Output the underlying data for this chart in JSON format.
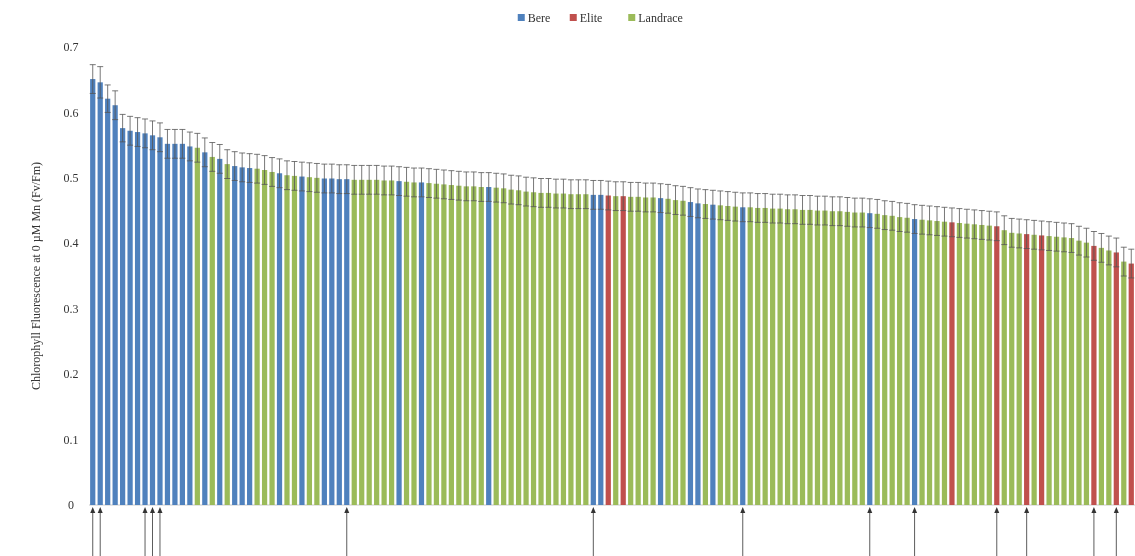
{
  "chart_data": {
    "type": "bar",
    "ylabel": "Chlorophyll Fluorescence at 0 µM Mn (Fv/Fm)",
    "legend": "top",
    "categories": [
      null,
      null,
      null,
      null,
      null,
      null,
      null,
      null,
      null,
      null,
      null,
      null,
      null,
      null,
      null,
      null,
      null,
      null,
      null,
      null,
      null,
      null,
      null,
      null,
      null,
      null,
      null,
      null,
      null,
      null,
      null,
      null,
      null,
      null,
      null,
      null,
      null,
      null,
      null,
      null,
      null,
      null,
      null,
      null,
      null,
      null,
      null,
      null,
      null,
      null,
      null,
      null,
      null,
      null,
      null,
      null,
      null,
      null,
      null,
      null,
      null,
      null,
      null,
      null,
      null,
      null,
      null,
      null,
      null,
      null,
      null,
      null,
      null,
      null,
      null,
      null,
      null,
      null,
      null,
      null,
      null,
      null,
      null,
      null,
      null,
      null,
      null,
      null,
      null,
      null,
      null,
      null,
      null,
      null,
      null,
      null,
      null,
      null,
      null,
      null,
      null,
      null,
      null,
      null,
      null,
      null,
      null,
      null,
      null,
      null,
      null,
      null,
      null,
      null,
      null,
      null,
      null,
      null,
      null,
      null,
      null,
      null,
      null,
      null,
      null,
      null,
      null,
      null,
      null,
      null,
      null,
      null,
      null,
      null,
      null,
      null,
      null,
      null,
      null,
      null
    ],
    "ylim": [
      0,
      0.7
    ],
    "yticks": [
      0,
      0.1,
      0.2,
      0.3,
      0.4,
      0.5,
      0.6,
      0.7
    ],
    "series": [
      {
        "name": "Bere",
        "color": "#4f81bd",
        "values": [
          0.651,
          0.646,
          0.621,
          0.611,
          0.576,
          0.572,
          0.57,
          0.568,
          0.565,
          0.562,
          0.552,
          0.552,
          0.552,
          0.548,
          null,
          0.539,
          null,
          0.529,
          null,
          0.518,
          0.516,
          0.515,
          null,
          null,
          null,
          0.507,
          null,
          null,
          0.502,
          null,
          null,
          0.499,
          0.499,
          0.498,
          0.498,
          null,
          null,
          null,
          null,
          null,
          null,
          0.495,
          null,
          null,
          0.493,
          null,
          null,
          null,
          null,
          null,
          null,
          null,
          null,
          0.486,
          null,
          null,
          null,
          null,
          null,
          null,
          null,
          null,
          null,
          null,
          null,
          null,
          null,
          0.474,
          0.474,
          null,
          null,
          null,
          null,
          null,
          null,
          null,
          0.469,
          null,
          null,
          null,
          0.463,
          0.461,
          null,
          0.459,
          null,
          null,
          null,
          0.455,
          null,
          null,
          null,
          null,
          null,
          null,
          null,
          null,
          null,
          null,
          null,
          null,
          null,
          null,
          null,
          null,
          0.446,
          null,
          null,
          null,
          null,
          null,
          0.437,
          null,
          null,
          null,
          null,
          null,
          null,
          null,
          null,
          null,
          null,
          null,
          null,
          null,
          null,
          null,
          null,
          null,
          null,
          null,
          null,
          null,
          null,
          null,
          null,
          null,
          null,
          null,
          null,
          null
        ],
        "errors": [
          0.022,
          0.024,
          0.021,
          0.022,
          0.021,
          0.022,
          0.022,
          0.022,
          0.022,
          0.022,
          0.022,
          0.022,
          0.022,
          0.022,
          null,
          0.022,
          null,
          0.022,
          null,
          0.022,
          0.022,
          0.022,
          null,
          null,
          null,
          0.022,
          null,
          null,
          0.022,
          null,
          null,
          0.022,
          0.022,
          0.022,
          0.022,
          null,
          null,
          null,
          null,
          null,
          null,
          0.022,
          null,
          null,
          0.022,
          null,
          null,
          null,
          null,
          null,
          null,
          null,
          null,
          0.022,
          null,
          null,
          null,
          null,
          null,
          null,
          null,
          null,
          null,
          null,
          null,
          null,
          null,
          0.022,
          0.022,
          null,
          null,
          null,
          null,
          null,
          null,
          null,
          0.022,
          null,
          null,
          null,
          0.022,
          0.022,
          null,
          0.022,
          null,
          null,
          null,
          0.022,
          null,
          null,
          null,
          null,
          null,
          null,
          null,
          null,
          null,
          null,
          null,
          null,
          null,
          null,
          null,
          null,
          0.022,
          null,
          null,
          null,
          null,
          null,
          0.022,
          null,
          null,
          null,
          null,
          null,
          null,
          null,
          null,
          null,
          null,
          null,
          null,
          null,
          null,
          null,
          null,
          null,
          null,
          null,
          null,
          null,
          null,
          null,
          null,
          null,
          null,
          null,
          null,
          null
        ]
      },
      {
        "name": "Elite",
        "color": "#c0504d",
        "values": [
          null,
          null,
          null,
          null,
          null,
          null,
          null,
          null,
          null,
          null,
          null,
          null,
          null,
          null,
          null,
          null,
          null,
          null,
          null,
          null,
          null,
          null,
          null,
          null,
          null,
          null,
          null,
          null,
          null,
          null,
          null,
          null,
          null,
          null,
          null,
          null,
          null,
          null,
          null,
          null,
          null,
          null,
          null,
          null,
          null,
          null,
          null,
          null,
          null,
          null,
          null,
          null,
          null,
          null,
          null,
          null,
          null,
          null,
          null,
          null,
          null,
          null,
          null,
          null,
          null,
          null,
          null,
          null,
          null,
          0.473,
          null,
          0.472,
          null,
          null,
          null,
          null,
          null,
          null,
          null,
          null,
          null,
          null,
          null,
          null,
          null,
          null,
          null,
          null,
          null,
          null,
          null,
          null,
          null,
          null,
          null,
          null,
          null,
          null,
          null,
          null,
          null,
          null,
          null,
          null,
          null,
          null,
          null,
          null,
          null,
          null,
          null,
          null,
          null,
          null,
          null,
          0.432,
          null,
          null,
          null,
          null,
          null,
          0.426,
          null,
          null,
          null,
          0.414,
          null,
          0.412,
          null,
          null,
          null,
          null,
          null,
          null,
          0.396,
          null,
          null,
          0.386,
          null,
          0.369
        ],
        "errors": [
          null,
          null,
          null,
          null,
          null,
          null,
          null,
          null,
          null,
          null,
          null,
          null,
          null,
          null,
          null,
          null,
          null,
          null,
          null,
          null,
          null,
          null,
          null,
          null,
          null,
          null,
          null,
          null,
          null,
          null,
          null,
          null,
          null,
          null,
          null,
          null,
          null,
          null,
          null,
          null,
          null,
          null,
          null,
          null,
          null,
          null,
          null,
          null,
          null,
          null,
          null,
          null,
          null,
          null,
          null,
          null,
          null,
          null,
          null,
          null,
          null,
          null,
          null,
          null,
          null,
          null,
          null,
          null,
          null,
          0.022,
          null,
          0.022,
          null,
          null,
          null,
          null,
          null,
          null,
          null,
          null,
          null,
          null,
          null,
          null,
          null,
          null,
          null,
          null,
          null,
          null,
          null,
          null,
          null,
          null,
          null,
          null,
          null,
          null,
          null,
          null,
          null,
          null,
          null,
          null,
          null,
          null,
          null,
          null,
          null,
          null,
          null,
          null,
          null,
          null,
          null,
          0.022,
          null,
          null,
          null,
          null,
          null,
          0.022,
          null,
          null,
          null,
          0.022,
          null,
          0.022,
          null,
          null,
          null,
          null,
          null,
          null,
          0.022,
          null,
          null,
          0.022,
          null,
          0.022
        ]
      },
      {
        "name": "Landrace",
        "color": "#9bbb59",
        "values": [
          null,
          null,
          null,
          null,
          null,
          null,
          null,
          null,
          null,
          null,
          null,
          null,
          null,
          null,
          0.546,
          null,
          0.532,
          null,
          0.521,
          null,
          null,
          null,
          0.514,
          0.512,
          0.509,
          null,
          0.504,
          0.503,
          null,
          0.501,
          0.5,
          null,
          null,
          null,
          null,
          0.497,
          0.497,
          0.497,
          0.497,
          0.496,
          0.496,
          null,
          0.494,
          0.493,
          null,
          0.492,
          0.491,
          0.49,
          0.489,
          0.488,
          0.487,
          0.487,
          0.486,
          null,
          0.485,
          0.484,
          0.482,
          0.481,
          0.479,
          0.478,
          0.477,
          0.477,
          0.476,
          0.476,
          0.475,
          0.475,
          0.475,
          null,
          null,
          null,
          0.472,
          null,
          0.471,
          0.471,
          0.47,
          0.47,
          null,
          0.468,
          0.466,
          0.465,
          null,
          null,
          0.46,
          null,
          0.458,
          0.457,
          0.456,
          null,
          0.455,
          0.454,
          0.454,
          0.453,
          0.453,
          0.452,
          0.452,
          0.451,
          0.451,
          0.45,
          0.45,
          0.449,
          0.449,
          0.448,
          0.447,
          0.447,
          null,
          0.445,
          0.443,
          0.442,
          0.44,
          0.439,
          null,
          0.436,
          0.435,
          0.434,
          0.433,
          null,
          0.431,
          0.43,
          0.429,
          0.428,
          0.427,
          null,
          0.42,
          0.416,
          0.415,
          null,
          0.413,
          null,
          0.411,
          0.41,
          0.409,
          0.408,
          0.404,
          0.401,
          null,
          0.393,
          0.389,
          null,
          0.372,
          null
        ],
        "errors": [
          null,
          null,
          null,
          null,
          null,
          null,
          null,
          null,
          null,
          null,
          null,
          null,
          null,
          null,
          0.022,
          null,
          0.022,
          null,
          0.022,
          null,
          null,
          null,
          0.022,
          0.022,
          0.022,
          null,
          0.022,
          0.022,
          null,
          0.022,
          0.022,
          null,
          null,
          null,
          null,
          0.022,
          0.022,
          0.022,
          0.022,
          0.022,
          0.022,
          null,
          0.022,
          0.022,
          null,
          0.022,
          0.022,
          0.022,
          0.022,
          0.022,
          0.022,
          0.022,
          0.022,
          null,
          0.022,
          0.022,
          0.022,
          0.022,
          0.022,
          0.022,
          0.022,
          0.022,
          0.022,
          0.022,
          0.022,
          0.022,
          0.022,
          null,
          null,
          null,
          0.022,
          null,
          0.022,
          0.022,
          0.022,
          0.022,
          null,
          0.022,
          0.022,
          0.022,
          null,
          null,
          0.022,
          null,
          0.022,
          0.022,
          0.022,
          null,
          0.022,
          0.022,
          0.022,
          0.022,
          0.022,
          0.022,
          0.022,
          0.022,
          0.022,
          0.022,
          0.022,
          0.022,
          0.022,
          0.022,
          0.022,
          0.022,
          null,
          0.022,
          0.022,
          0.022,
          0.022,
          0.022,
          null,
          0.022,
          0.022,
          0.022,
          0.022,
          null,
          0.022,
          0.022,
          0.022,
          0.022,
          0.022,
          null,
          0.022,
          0.022,
          0.022,
          null,
          0.022,
          null,
          0.022,
          0.022,
          0.022,
          0.022,
          0.022,
          0.022,
          null,
          0.022,
          0.022,
          null,
          0.022,
          null
        ]
      }
    ]
  }
}
